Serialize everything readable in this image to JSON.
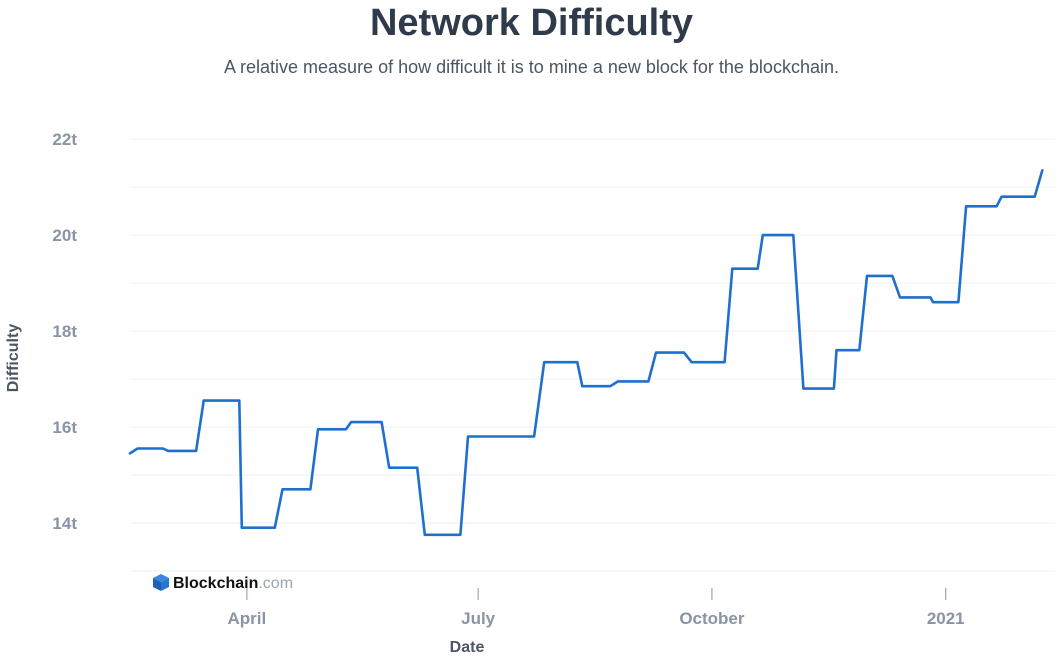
{
  "chart_data": {
    "type": "line",
    "title": "Network Difficulty",
    "subtitle": "A relative measure of how difficult it is to mine a new block for the blockchain.",
    "xlabel": "Date",
    "ylabel": "Difficulty",
    "y_unit_suffix": "t",
    "ylim": [
      12.6,
      22.4
    ],
    "xlim": [
      "2020-02-15",
      "2021-02-13"
    ],
    "y_ticks": [
      14,
      16,
      18,
      20,
      22
    ],
    "x_ticks": [
      {
        "label": "April",
        "date": "2020-04-01"
      },
      {
        "label": "July",
        "date": "2020-07-01"
      },
      {
        "label": "October",
        "date": "2020-10-01"
      },
      {
        "label": "2021",
        "date": "2021-01-01"
      }
    ],
    "grid": true,
    "line_color": "#1f6fcf",
    "series": [
      {
        "x": [
          "2020-02-15",
          "2020-02-18",
          "2020-02-28",
          "2020-03-01",
          "2020-03-12",
          "2020-03-15",
          "2020-03-29",
          "2020-03-30",
          "2020-04-12",
          "2020-04-15",
          "2020-04-26",
          "2020-04-29",
          "2020-05-10",
          "2020-05-12",
          "2020-05-24",
          "2020-05-27",
          "2020-06-07",
          "2020-06-10",
          "2020-06-24",
          "2020-06-27",
          "2020-07-23",
          "2020-07-27",
          "2020-08-09",
          "2020-08-11",
          "2020-08-22",
          "2020-08-25",
          "2020-09-06",
          "2020-09-09",
          "2020-09-20",
          "2020-09-23",
          "2020-10-06",
          "2020-10-09",
          "2020-10-19",
          "2020-10-21",
          "2020-11-02",
          "2020-11-06",
          "2020-11-18",
          "2020-11-19",
          "2020-11-28",
          "2020-12-01",
          "2020-12-11",
          "2020-12-14",
          "2020-12-26",
          "2020-12-27",
          "2021-01-06",
          "2021-01-09",
          "2021-01-21",
          "2021-01-23",
          "2021-02-05",
          "2021-02-08"
        ],
        "y": [
          15.45,
          15.55,
          15.55,
          15.5,
          15.5,
          16.55,
          16.55,
          13.9,
          13.9,
          14.7,
          14.7,
          15.95,
          15.95,
          16.1,
          16.1,
          15.15,
          15.15,
          13.75,
          13.75,
          15.8,
          15.8,
          17.35,
          17.35,
          16.85,
          16.85,
          16.95,
          16.95,
          17.55,
          17.55,
          17.35,
          17.35,
          19.3,
          19.3,
          20.0,
          20.0,
          16.8,
          16.8,
          17.6,
          17.6,
          19.15,
          19.15,
          18.7,
          18.7,
          18.6,
          18.6,
          20.6,
          20.6,
          20.8,
          20.8,
          21.35
        ]
      }
    ]
  },
  "brand": {
    "name": "Blockchain",
    "suffix": ".com"
  }
}
